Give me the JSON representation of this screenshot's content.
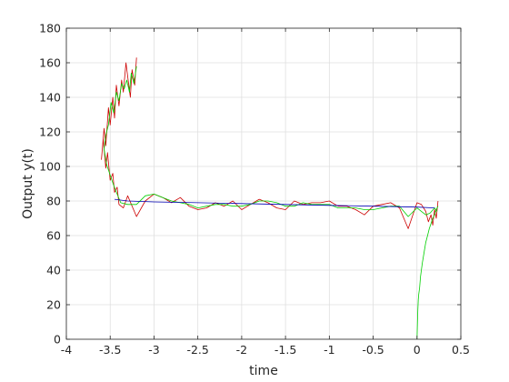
{
  "chart_data": {
    "type": "line",
    "title": "",
    "xlabel": "time",
    "ylabel": "Output y(t)",
    "xlim": [
      -4,
      0.5
    ],
    "ylim": [
      0,
      180
    ],
    "xticks": [
      -4,
      -3.5,
      -3,
      -2.5,
      -2,
      -1.5,
      -1,
      -0.5,
      0,
      0.5
    ],
    "xtick_labels": [
      "-4",
      "-3.5",
      "-3",
      "-2.5",
      "-2",
      "-1.5",
      "-1",
      "-0.5",
      "0",
      "0.5"
    ],
    "yticks": [
      0,
      20,
      40,
      60,
      80,
      100,
      120,
      140,
      160,
      180
    ],
    "ytick_labels": [
      "0",
      "20",
      "40",
      "60",
      "80",
      "100",
      "120",
      "140",
      "160",
      "180"
    ],
    "grid": true,
    "legend": "none",
    "series": [
      {
        "color": "#cc0000",
        "points": [
          [
            -3.2,
            163
          ],
          [
            -3.22,
            147
          ],
          [
            -3.25,
            156
          ],
          [
            -3.27,
            140
          ],
          [
            -3.3,
            152
          ],
          [
            -3.32,
            160
          ],
          [
            -3.35,
            143
          ],
          [
            -3.37,
            150
          ],
          [
            -3.4,
            135
          ],
          [
            -3.43,
            147
          ],
          [
            -3.45,
            128
          ],
          [
            -3.47,
            140
          ],
          [
            -3.5,
            124
          ],
          [
            -3.52,
            134
          ],
          [
            -3.55,
            112
          ],
          [
            -3.57,
            122
          ],
          [
            -3.6,
            104
          ],
          [
            -3.58,
            116
          ],
          [
            -3.55,
            99
          ],
          [
            -3.53,
            108
          ],
          [
            -3.5,
            92
          ],
          [
            -3.47,
            96
          ],
          [
            -3.45,
            85
          ],
          [
            -3.42,
            88
          ],
          [
            -3.4,
            78
          ],
          [
            -3.35,
            76
          ],
          [
            -3.3,
            83
          ],
          [
            -3.2,
            71
          ],
          [
            -3.1,
            80
          ],
          [
            -3.0,
            84
          ],
          [
            -2.9,
            82
          ],
          [
            -2.8,
            79
          ],
          [
            -2.7,
            82
          ],
          [
            -2.6,
            77
          ],
          [
            -2.5,
            75
          ],
          [
            -2.4,
            76
          ],
          [
            -2.3,
            79
          ],
          [
            -2.2,
            77
          ],
          [
            -2.1,
            80
          ],
          [
            -2.0,
            75
          ],
          [
            -1.9,
            78
          ],
          [
            -1.8,
            81
          ],
          [
            -1.7,
            79
          ],
          [
            -1.6,
            76
          ],
          [
            -1.5,
            75
          ],
          [
            -1.4,
            80
          ],
          [
            -1.3,
            78
          ],
          [
            -1.2,
            79
          ],
          [
            -1.1,
            79
          ],
          [
            -1.0,
            80
          ],
          [
            -0.9,
            77
          ],
          [
            -0.8,
            77
          ],
          [
            -0.7,
            75
          ],
          [
            -0.6,
            72
          ],
          [
            -0.5,
            77
          ],
          [
            -0.4,
            78
          ],
          [
            -0.3,
            79
          ],
          [
            -0.2,
            76
          ],
          [
            -0.1,
            64
          ],
          [
            0.0,
            79
          ],
          [
            0.05,
            78
          ],
          [
            0.1,
            74
          ],
          [
            0.13,
            68
          ],
          [
            0.16,
            72
          ],
          [
            0.18,
            66
          ],
          [
            0.2,
            75
          ],
          [
            0.22,
            70
          ],
          [
            0.24,
            80
          ]
        ]
      },
      {
        "color": "#00d000",
        "points": [
          [
            -3.2,
            158
          ],
          [
            -3.23,
            148
          ],
          [
            -3.26,
            154
          ],
          [
            -3.28,
            143
          ],
          [
            -3.31,
            150
          ],
          [
            -3.34,
            145
          ],
          [
            -3.37,
            148
          ],
          [
            -3.4,
            138
          ],
          [
            -3.43,
            143
          ],
          [
            -3.46,
            131
          ],
          [
            -3.49,
            137
          ],
          [
            -3.52,
            124
          ],
          [
            -3.55,
            118
          ],
          [
            -3.57,
            110
          ],
          [
            -3.54,
            101
          ],
          [
            -3.5,
            95
          ],
          [
            -3.46,
            89
          ],
          [
            -3.42,
            84
          ],
          [
            -3.38,
            79
          ],
          [
            -3.3,
            78
          ],
          [
            -3.2,
            78
          ],
          [
            -3.1,
            83
          ],
          [
            -3.0,
            84
          ],
          [
            -2.9,
            82
          ],
          [
            -2.8,
            80
          ],
          [
            -2.7,
            79
          ],
          [
            -2.6,
            78
          ],
          [
            -2.5,
            76
          ],
          [
            -2.4,
            77
          ],
          [
            -2.3,
            78
          ],
          [
            -2.2,
            78
          ],
          [
            -2.1,
            77
          ],
          [
            -2.0,
            77
          ],
          [
            -1.9,
            78
          ],
          [
            -1.8,
            80
          ],
          [
            -1.7,
            80
          ],
          [
            -1.6,
            79
          ],
          [
            -1.5,
            77
          ],
          [
            -1.4,
            77
          ],
          [
            -1.3,
            79
          ],
          [
            -1.2,
            78
          ],
          [
            -1.1,
            78
          ],
          [
            -1.0,
            78
          ],
          [
            -0.9,
            76
          ],
          [
            -0.8,
            76
          ],
          [
            -0.7,
            76
          ],
          [
            -0.6,
            75
          ],
          [
            -0.5,
            75
          ],
          [
            -0.4,
            76
          ],
          [
            -0.3,
            77
          ],
          [
            -0.2,
            77
          ],
          [
            -0.1,
            71
          ],
          [
            0.0,
            76
          ],
          [
            0.05,
            74
          ],
          [
            0.1,
            72
          ],
          [
            0.15,
            73
          ],
          [
            0.2,
            76
          ],
          [
            0.23,
            74
          ]
        ]
      },
      {
        "color": "#00d000",
        "points": [
          [
            0.0,
            0
          ],
          [
            0.005,
            10
          ],
          [
            0.01,
            17
          ],
          [
            0.015,
            23
          ],
          [
            0.02,
            26
          ],
          [
            0.03,
            30
          ],
          [
            0.04,
            36
          ],
          [
            0.05,
            40
          ],
          [
            0.06,
            44
          ],
          [
            0.08,
            50
          ],
          [
            0.1,
            56
          ],
          [
            0.12,
            60
          ],
          [
            0.14,
            64
          ],
          [
            0.16,
            67
          ],
          [
            0.18,
            70
          ],
          [
            0.2,
            72
          ],
          [
            0.22,
            75
          ],
          [
            0.24,
            77
          ]
        ]
      },
      {
        "color": "#0000b4",
        "points": [
          [
            -3.45,
            81
          ],
          [
            -3.3,
            80
          ],
          [
            -3.0,
            79.5
          ],
          [
            -2.5,
            79
          ],
          [
            -2.0,
            78.5
          ],
          [
            -1.5,
            78
          ],
          [
            -1.0,
            77.5
          ],
          [
            -0.5,
            77
          ],
          [
            0.0,
            76.5
          ],
          [
            0.2,
            76
          ]
        ]
      }
    ]
  }
}
